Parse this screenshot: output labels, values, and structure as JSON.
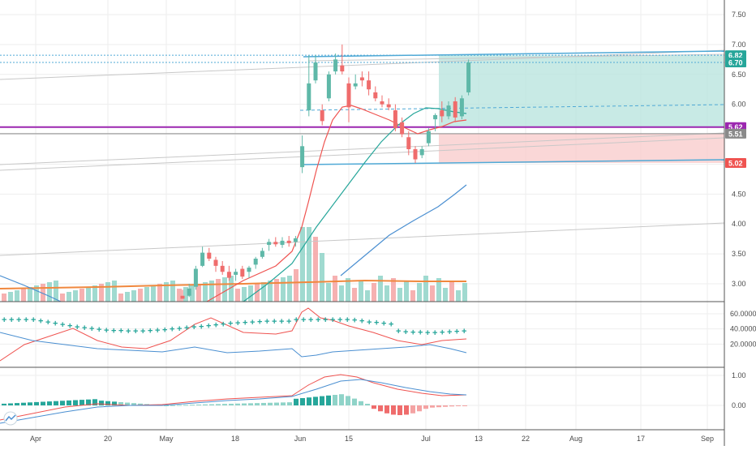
{
  "colors": {
    "up": "#5fb8a8",
    "down": "#ef6c6c",
    "volume_up": "#8fd3c8",
    "volume_down": "#f4a3a3",
    "ema_fast": "#ef5350",
    "ema_mid": "#26a69a",
    "ema_slow": "#4a8fd1",
    "vol_ma": "#f0883e",
    "purple": "#9c27b0",
    "channel": "#4fa9d6",
    "profit_zone": "#b6e3dc",
    "loss_zone": "#f8c9c9",
    "grey_line": "#c8c8c8",
    "dmi_plus": "#ef5350",
    "dmi_minus": "#4a8fd1",
    "adx_cross": "#26a69a",
    "macd_line": "#ef5350",
    "signal_line": "#4a8fd1",
    "grid": "#eeeeee"
  },
  "price_axis": {
    "ticks": [
      "7.50",
      "7.00",
      "6.50",
      "6.00",
      "5.50",
      "5.00",
      "4.50",
      "4.00",
      "3.50",
      "3.00"
    ]
  },
  "price_badges": [
    {
      "label": "6.82",
      "value": 6.82,
      "color": "#26a69a"
    },
    {
      "label": "6.70",
      "value": 6.7,
      "color": "#26a69a"
    },
    {
      "label": "5.62",
      "value": 5.62,
      "color": "#9c27b0"
    },
    {
      "label": "5.51",
      "value": 5.51,
      "color": "#8a8a8a"
    },
    {
      "label": "5.02",
      "value": 5.02,
      "color": "#ef5350"
    }
  ],
  "dmi_axis": {
    "ticks": [
      "60.0000",
      "40.0000",
      "20.0000"
    ]
  },
  "macd_axis": {
    "ticks": [
      "1.00",
      "0.00"
    ]
  },
  "x_axis": {
    "ticks": [
      "Apr",
      "20",
      "May",
      "18",
      "Jun",
      "15",
      "Jul",
      "13",
      "22",
      "Aug",
      "17",
      "Sep"
    ]
  },
  "chart_data": {
    "type": "candlestick",
    "grid": true,
    "candles": [
      {
        "date": "May 11",
        "o": 2.8,
        "h": 2.9,
        "l": 2.7,
        "c": 2.75
      },
      {
        "date": "May 12",
        "o": 2.8,
        "h": 3.0,
        "l": 2.78,
        "c": 2.92
      },
      {
        "date": "May 13",
        "o": 2.95,
        "h": 3.3,
        "l": 2.9,
        "c": 3.25
      },
      {
        "date": "May 14",
        "o": 3.3,
        "h": 3.62,
        "l": 3.28,
        "c": 3.52
      },
      {
        "date": "May 15",
        "o": 3.52,
        "h": 3.6,
        "l": 3.38,
        "c": 3.42
      },
      {
        "date": "May 18",
        "o": 3.4,
        "h": 3.45,
        "l": 3.2,
        "c": 3.3
      },
      {
        "date": "May 19",
        "o": 3.3,
        "h": 3.38,
        "l": 3.15,
        "c": 3.2
      },
      {
        "date": "May 20",
        "o": 3.2,
        "h": 3.3,
        "l": 3.05,
        "c": 3.1
      },
      {
        "date": "May 21",
        "o": 3.15,
        "h": 3.25,
        "l": 3.05,
        "c": 3.2
      },
      {
        "date": "May 22",
        "o": 3.25,
        "h": 3.3,
        "l": 3.08,
        "c": 3.12
      },
      {
        "date": "May 26",
        "o": 3.2,
        "h": 3.3,
        "l": 3.1,
        "c": 3.27
      },
      {
        "date": "May 27",
        "o": 3.32,
        "h": 3.45,
        "l": 3.25,
        "c": 3.42
      },
      {
        "date": "May 28",
        "o": 3.45,
        "h": 3.6,
        "l": 3.42,
        "c": 3.55
      },
      {
        "date": "May 29",
        "o": 3.65,
        "h": 3.75,
        "l": 3.55,
        "c": 3.7
      },
      {
        "date": "Jun 1",
        "o": 3.7,
        "h": 3.78,
        "l": 3.62,
        "c": 3.66
      },
      {
        "date": "Jun 2",
        "o": 3.65,
        "h": 3.78,
        "l": 3.6,
        "c": 3.72
      },
      {
        "date": "Jun 3",
        "o": 3.72,
        "h": 3.8,
        "l": 3.62,
        "c": 3.68
      },
      {
        "date": "Jun 4",
        "o": 3.7,
        "h": 3.8,
        "l": 3.62,
        "c": 3.76
      },
      {
        "date": "Jun 5",
        "o": 4.95,
        "h": 5.48,
        "l": 4.85,
        "c": 5.3
      },
      {
        "date": "Jun 8",
        "o": 5.9,
        "h": 6.82,
        "l": 5.8,
        "c": 6.35
      },
      {
        "date": "Jun 9",
        "o": 6.4,
        "h": 6.82,
        "l": 6.35,
        "c": 6.7
      },
      {
        "date": "Jun 10",
        "o": 5.9,
        "h": 6.0,
        "l": 5.65,
        "c": 5.72
      },
      {
        "date": "Jun 11",
        "o": 6.1,
        "h": 6.55,
        "l": 6.05,
        "c": 6.5
      },
      {
        "date": "Jun 12",
        "o": 6.55,
        "h": 6.85,
        "l": 6.5,
        "c": 6.75
      },
      {
        "date": "Jun 15",
        "o": 6.65,
        "h": 7.0,
        "l": 6.5,
        "c": 6.55
      },
      {
        "date": "Jun 16",
        "o": 6.35,
        "h": 6.45,
        "l": 5.7,
        "c": 5.95
      },
      {
        "date": "Jun 17",
        "o": 6.3,
        "h": 6.5,
        "l": 6.25,
        "c": 6.35
      },
      {
        "date": "Jun 18",
        "o": 6.45,
        "h": 6.55,
        "l": 6.3,
        "c": 6.4
      },
      {
        "date": "Jun 19",
        "o": 6.4,
        "h": 6.55,
        "l": 6.15,
        "c": 6.25
      },
      {
        "date": "Jun 22",
        "o": 6.2,
        "h": 6.3,
        "l": 6.05,
        "c": 6.1
      },
      {
        "date": "Jun 23",
        "o": 6.05,
        "h": 6.15,
        "l": 5.95,
        "c": 6.0
      },
      {
        "date": "Jun 24",
        "o": 6.0,
        "h": 6.1,
        "l": 5.9,
        "c": 5.95
      },
      {
        "date": "Jun 25",
        "o": 5.9,
        "h": 6.0,
        "l": 5.55,
        "c": 5.6
      },
      {
        "date": "Jun 26",
        "o": 5.7,
        "h": 5.78,
        "l": 5.45,
        "c": 5.5
      },
      {
        "date": "Jun 29",
        "o": 5.45,
        "h": 5.55,
        "l": 5.15,
        "c": 5.25
      },
      {
        "date": "Jun 30",
        "o": 5.25,
        "h": 5.3,
        "l": 5.02,
        "c": 5.08
      },
      {
        "date": "Jul 1",
        "o": 5.15,
        "h": 5.3,
        "l": 5.1,
        "c": 5.25
      },
      {
        "date": "Jul 2",
        "o": 5.35,
        "h": 5.6,
        "l": 5.3,
        "c": 5.55
      },
      {
        "date": "Jul 6",
        "o": 5.75,
        "h": 5.85,
        "l": 5.55,
        "c": 5.82
      },
      {
        "date": "Jul 7",
        "o": 5.9,
        "h": 6.05,
        "l": 5.7,
        "c": 5.8
      },
      {
        "date": "Jul 8",
        "o": 5.8,
        "h": 6.05,
        "l": 5.75,
        "c": 5.98
      },
      {
        "date": "Jul 9",
        "o": 6.05,
        "h": 6.12,
        "l": 5.7,
        "c": 5.78
      },
      {
        "date": "Jul 10",
        "o": 5.8,
        "h": 6.15,
        "l": 5.75,
        "c": 6.1
      },
      {
        "date": "Jul 13",
        "o": 6.2,
        "h": 6.75,
        "l": 6.15,
        "c": 6.7
      }
    ]
  }
}
